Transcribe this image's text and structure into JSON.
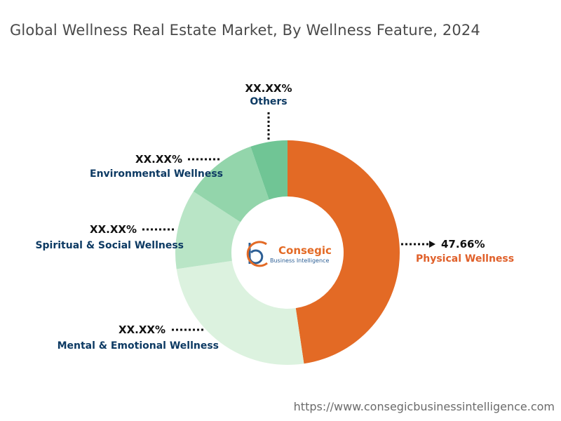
{
  "title": "Global Wellness Real Estate Market, By Wellness Feature, 2024",
  "footer_url": "https://www.consegicbusinessintelligence.com",
  "logo": {
    "name": "Consegic",
    "tagline": "Business Intelligence"
  },
  "colors": {
    "label_dark": "#0d3a63",
    "label_accent": "#e0602a",
    "value_text": "#111111",
    "leader": "#111111"
  },
  "chart_data": {
    "type": "pie",
    "donut": true,
    "title": "Global Wellness Real Estate Market, By Wellness Feature, 2024",
    "segments": [
      {
        "name": "Physical Wellness",
        "value": 47.66,
        "label": "47.66%",
        "color": "#e36a25",
        "highlight": true
      },
      {
        "name": "Mental & Emotional Wellness",
        "value": 25.0,
        "label": "XX.XX%",
        "color": "#dcf2df"
      },
      {
        "name": "Spiritual & Social Wellness",
        "value": 11.5,
        "label": "XX.XX%",
        "color": "#b9e5c6"
      },
      {
        "name": "Environmental Wellness",
        "value": 10.5,
        "label": "XX.XX%",
        "color": "#93d5ab"
      },
      {
        "name": "Others",
        "value": 5.34,
        "label": "XX.XX%",
        "color": "#70c595"
      }
    ]
  }
}
